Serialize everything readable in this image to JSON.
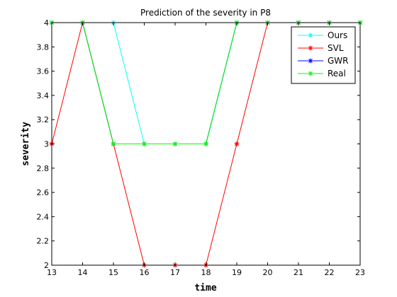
{
  "chart_data": {
    "type": "line",
    "title": "Prediction of  the severity in  P8",
    "xlabel": "time",
    "ylabel": "severity",
    "xlim": [
      13,
      23
    ],
    "ylim": [
      2,
      4
    ],
    "x_ticks": [
      13,
      14,
      15,
      16,
      17,
      18,
      19,
      20,
      21,
      22,
      23
    ],
    "y_ticks": [
      2,
      2.2,
      2.4,
      2.6,
      2.8,
      3,
      3.2,
      3.4,
      3.6,
      3.8,
      4
    ],
    "y_tick_labels": [
      "2",
      "2.2",
      "2.4",
      "2.6",
      "2.8",
      "3",
      "3.2",
      "3.4",
      "3.6",
      "3.8",
      "4"
    ],
    "grid": false,
    "legend_position": "top-right",
    "x": [
      13,
      14,
      15,
      16,
      17,
      18,
      19,
      20,
      21,
      22,
      23
    ],
    "series": [
      {
        "name": "Ours",
        "color": "#00ffff",
        "marker": "asterisk",
        "values": [
          4,
          4,
          4,
          3,
          3,
          3,
          4,
          4,
          4,
          4,
          4
        ]
      },
      {
        "name": "SVL",
        "color": "#ff0000",
        "marker": "asterisk",
        "values": [
          3,
          4,
          3,
          2,
          2,
          2,
          3,
          4,
          4,
          4,
          4
        ]
      },
      {
        "name": "GWR",
        "color": "#0000ff",
        "marker": "asterisk",
        "values": [
          4,
          4,
          3,
          3,
          3,
          3,
          4,
          4,
          4,
          4,
          4
        ]
      },
      {
        "name": "Real",
        "color": "#00ff00",
        "marker": "asterisk",
        "values": [
          4,
          4,
          3,
          3,
          3,
          3,
          4,
          4,
          4,
          4,
          4
        ]
      }
    ]
  }
}
